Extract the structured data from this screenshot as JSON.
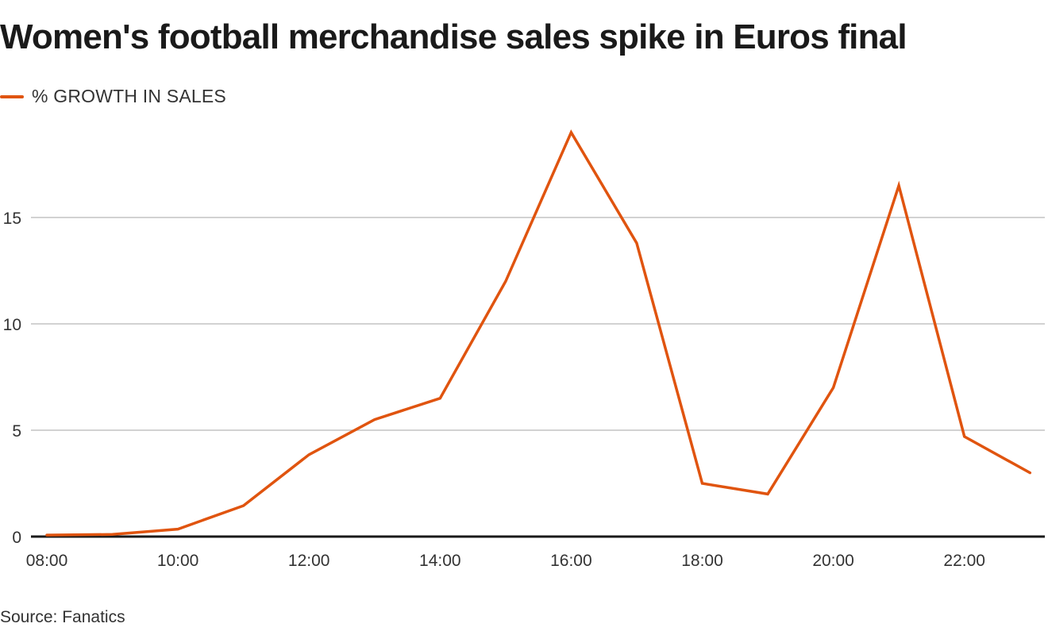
{
  "header": {
    "title": "Women's football merchandise sales spike in Euros final"
  },
  "legend": {
    "label": "% GROWTH IN SALES",
    "color": "#e0540f"
  },
  "footer": {
    "source": "Source: Fanatics"
  },
  "colors": {
    "line": "#e0540f",
    "grid": "#c4c4c4",
    "baseline": "#1a1a1a"
  },
  "chart_data": {
    "type": "line",
    "title": "Women's football merchandise sales spike in Euros final",
    "xlabel": "",
    "ylabel": "",
    "x": [
      "08:00",
      "09:00",
      "10:00",
      "11:00",
      "12:00",
      "13:00",
      "14:00",
      "15:00",
      "16:00",
      "17:00",
      "18:00",
      "19:00",
      "20:00",
      "21:00",
      "22:00",
      "23:00"
    ],
    "series": [
      {
        "name": "% GROWTH IN SALES",
        "values": [
          0.07,
          0.1,
          0.35,
          1.45,
          3.85,
          5.5,
          6.5,
          12.0,
          19.0,
          13.8,
          2.5,
          2.0,
          7.0,
          16.5,
          4.7,
          3.0
        ]
      }
    ],
    "x_tick_labels": [
      "08:00",
      "10:00",
      "12:00",
      "14:00",
      "16:00",
      "18:00",
      "20:00",
      "22:00"
    ],
    "y_ticks": [
      0,
      5,
      10,
      15
    ],
    "ylim": [
      0,
      19.5
    ],
    "grid": true,
    "legend_position": "top-left",
    "source": "Source: Fanatics"
  }
}
